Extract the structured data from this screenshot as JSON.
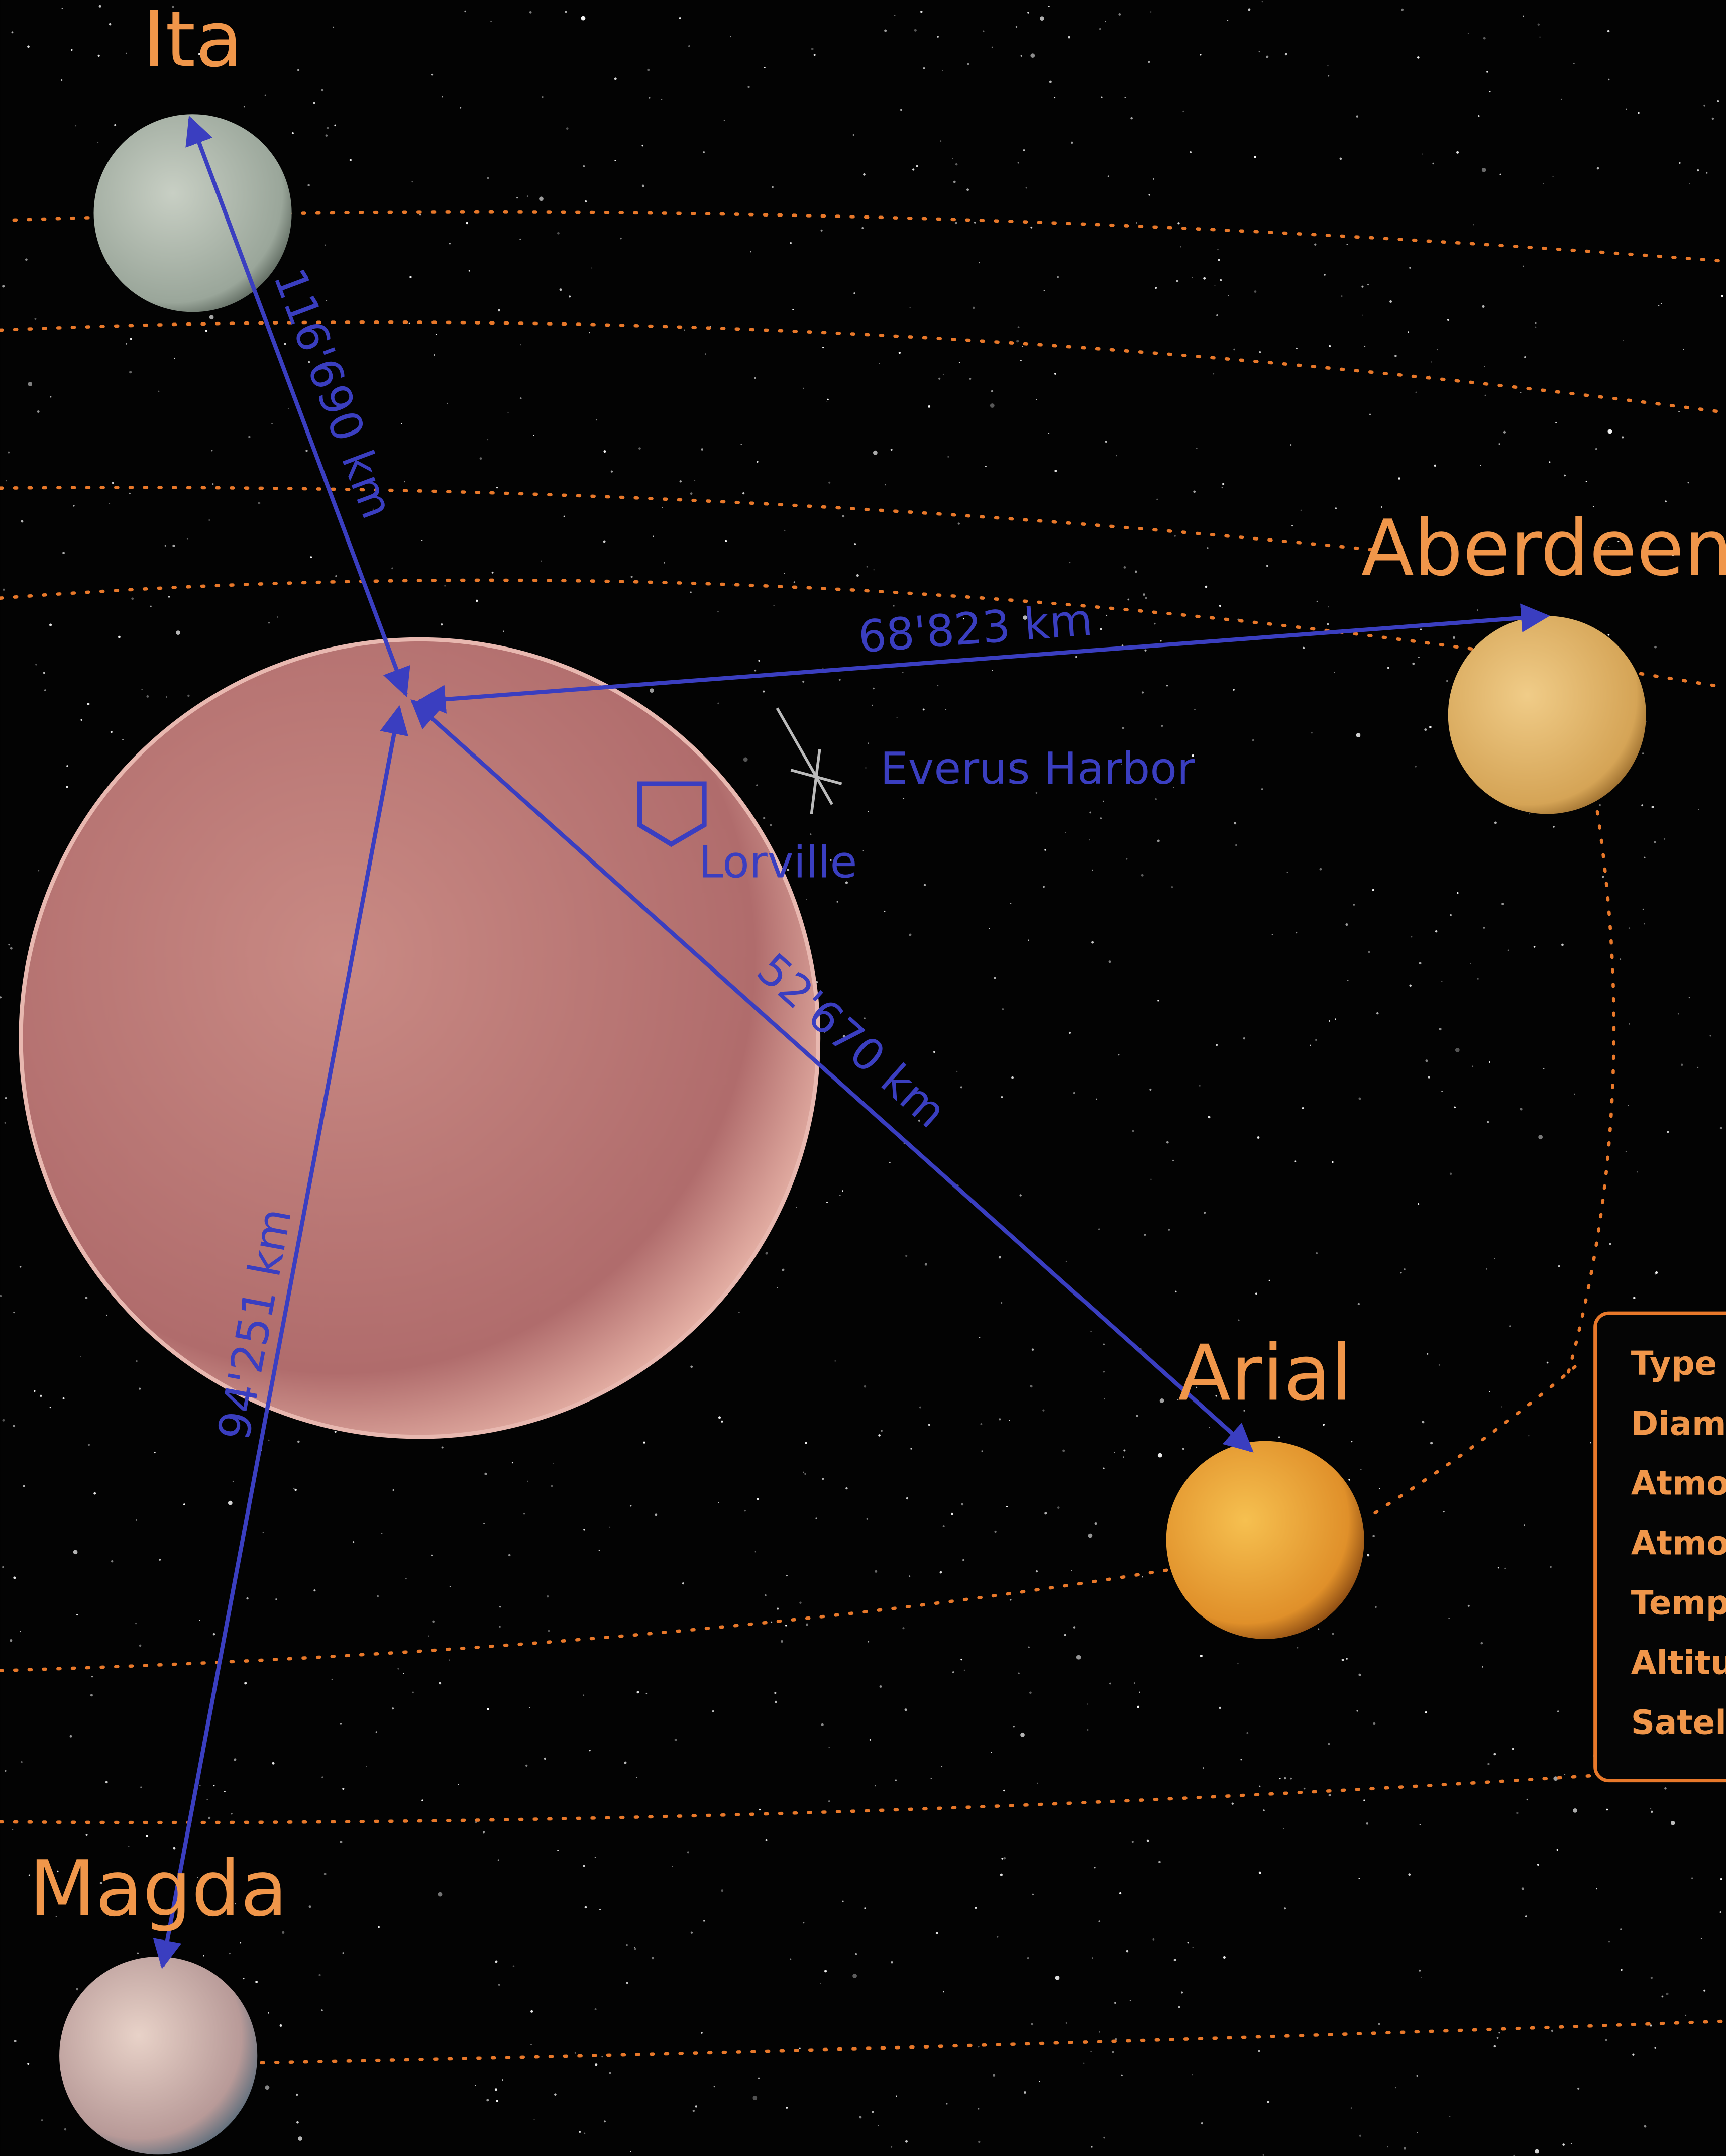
{
  "planets": [
    {
      "name": "Ita"
    },
    {
      "name": "Aberdeen"
    },
    {
      "name": "Arial"
    },
    {
      "name": "Magda"
    }
  ],
  "routes": [
    {
      "label": "116'690 km"
    },
    {
      "label": "68'823 km"
    },
    {
      "label": "52'670 km"
    },
    {
      "label": "94'251 km"
    }
  ],
  "locations": [
    {
      "label": "Everus Harbor"
    },
    {
      "label": "Lorville"
    }
  ],
  "info_panel": {
    "rows": [
      "Type",
      "Diam",
      "Atmo",
      "Atmo",
      "Temp",
      "Altitu",
      "Satel"
    ]
  }
}
